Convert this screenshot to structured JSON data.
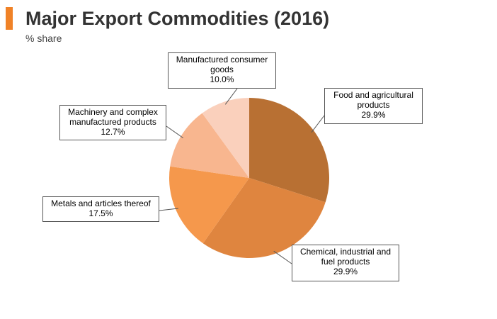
{
  "header": {
    "title": "Major Export Commodities (2016)",
    "subtitle": "% share"
  },
  "chart_data": {
    "type": "pie",
    "title": "Major Export Commodities (2016)",
    "subtitle": "% share",
    "slices": [
      {
        "label": "Food and agricultural products",
        "value": 29.9,
        "value_label": "29.9%",
        "color": "#b87033"
      },
      {
        "label": "Chemical, industrial and fuel products",
        "value": 29.9,
        "value_label": "29.9%",
        "color": "#df853f"
      },
      {
        "label": "Metals and articles thereof",
        "value": 17.5,
        "value_label": "17.5%",
        "color": "#f5984c"
      },
      {
        "label": "Machinery and complex manufactured products",
        "value": 12.7,
        "value_label": "12.7%",
        "color": "#f8b68f"
      },
      {
        "label": "Manufactured consumer goods",
        "value": 10.0,
        "value_label": "10.0%",
        "color": "#fad0bc"
      }
    ],
    "start_angle": "12 o'clock",
    "direction": "clockwise"
  },
  "callouts": {
    "food": {
      "lines": [
        "Food and agricultural",
        "products"
      ],
      "value": "29.9%"
    },
    "chemical": {
      "lines": [
        "Chemical, industrial and",
        "fuel products"
      ],
      "value": "29.9%"
    },
    "metals": {
      "lines": [
        "Metals and articles thereof"
      ],
      "value": "17.5%"
    },
    "machinery": {
      "lines": [
        "Machinery and complex",
        "manufactured products"
      ],
      "value": "12.7%"
    },
    "consumer": {
      "lines": [
        "Manufactured consumer",
        "goods"
      ],
      "value": "10.0%"
    }
  }
}
